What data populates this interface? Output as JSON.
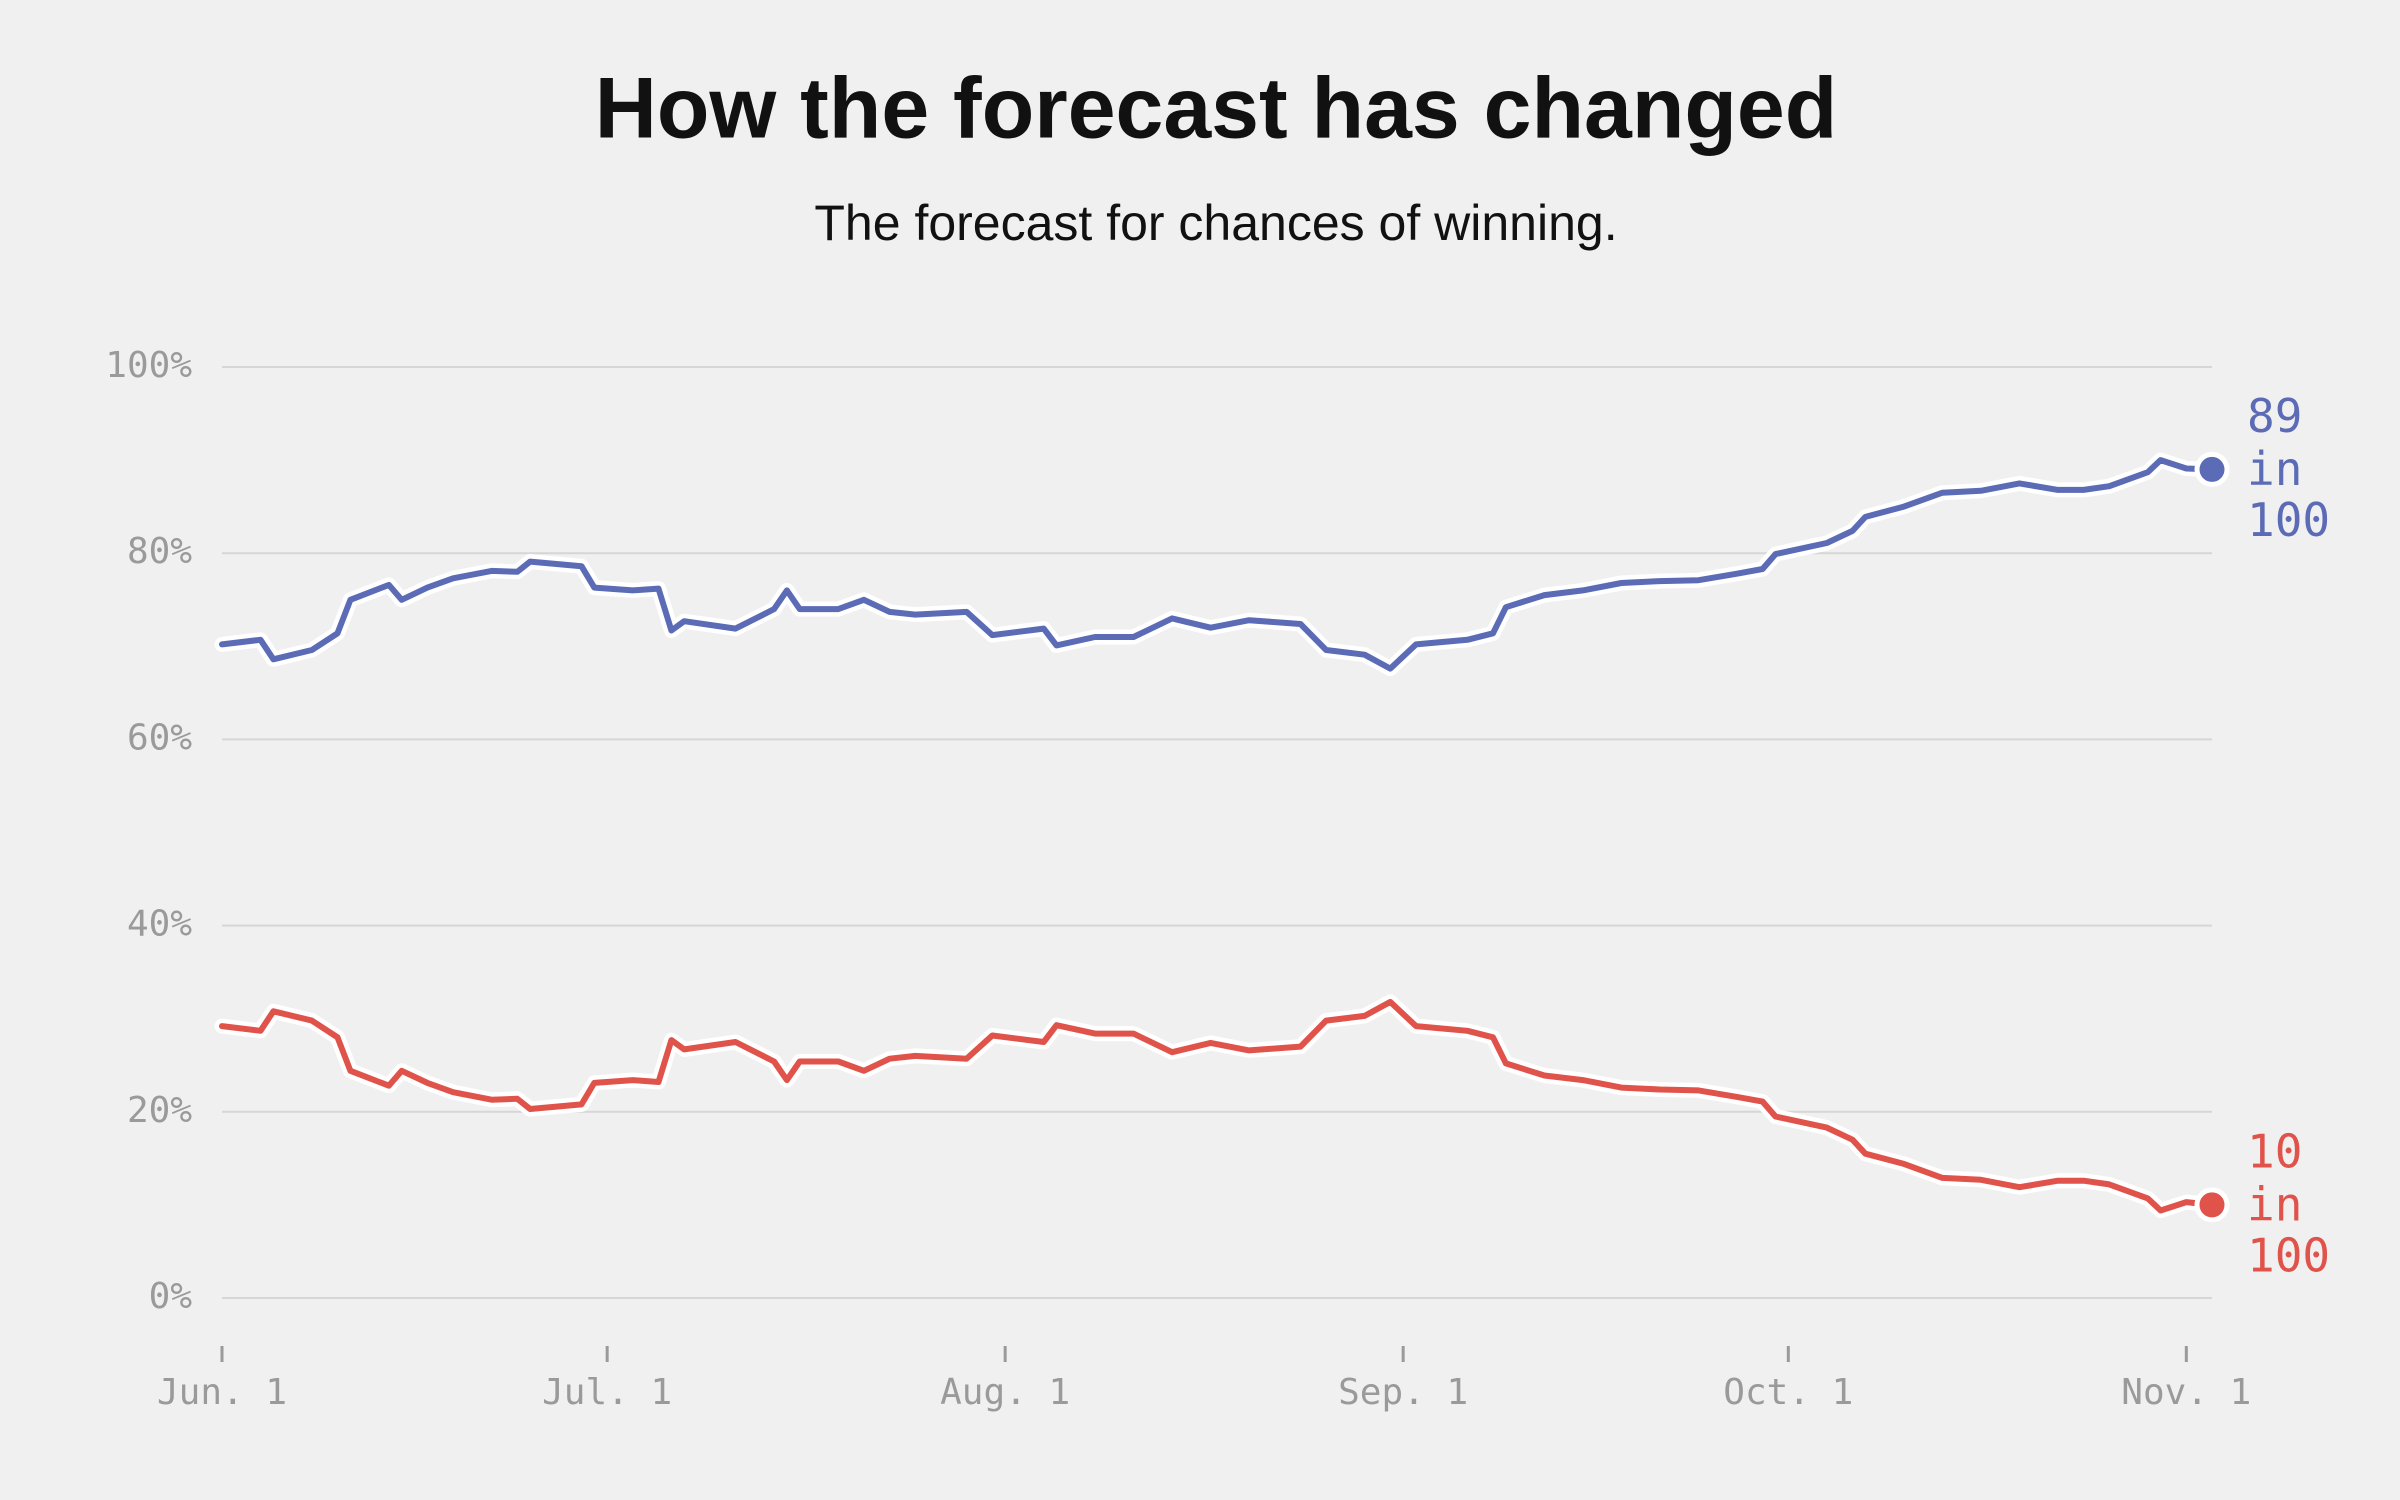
{
  "chart_data": {
    "type": "line",
    "title": "How the forecast has changed",
    "subtitle": "The forecast for chances of winning.",
    "x": [
      "06-01",
      "06-04",
      "06-05",
      "06-08",
      "06-10",
      "06-11",
      "06-14",
      "06-15",
      "06-17",
      "06-19",
      "06-22",
      "06-24",
      "06-25",
      "06-29",
      "06-30",
      "07-03",
      "07-05",
      "07-06",
      "07-07",
      "07-11",
      "07-14",
      "07-15",
      "07-16",
      "07-19",
      "07-21",
      "07-23",
      "07-25",
      "07-29",
      "07-31",
      "08-04",
      "08-05",
      "08-08",
      "08-11",
      "08-14",
      "08-17",
      "08-20",
      "08-24",
      "08-26",
      "08-29",
      "08-31",
      "09-02",
      "09-06",
      "09-08",
      "09-09",
      "09-12",
      "09-15",
      "09-18",
      "09-21",
      "09-24",
      "09-27",
      "09-29",
      "09-30",
      "10-04",
      "10-06",
      "10-07",
      "10-10",
      "10-13",
      "10-16",
      "10-19",
      "10-22",
      "10-24",
      "10-26",
      "10-29",
      "10-30",
      "11-01",
      "11-03"
    ],
    "series": [
      {
        "color": "#5b6bb5",
        "values": [
          70.2,
          70.7,
          68.6,
          69.6,
          71.4,
          75.0,
          76.6,
          75.0,
          76.3,
          77.3,
          78.1,
          78.0,
          79.1,
          78.6,
          76.3,
          76.0,
          76.2,
          71.7,
          72.7,
          71.9,
          74.0,
          76.0,
          74.0,
          74.0,
          75.0,
          73.7,
          73.4,
          73.7,
          71.2,
          71.9,
          70.1,
          71.0,
          71.0,
          73.0,
          72.0,
          72.8,
          72.4,
          69.6,
          69.1,
          67.6,
          70.2,
          70.7,
          71.4,
          74.2,
          75.5,
          76.0,
          76.8,
          77.0,
          77.1,
          77.8,
          78.3,
          79.9,
          81.1,
          82.4,
          83.9,
          85.0,
          86.5,
          86.7,
          87.5,
          86.8,
          86.8,
          87.2,
          88.7,
          90.0,
          89.1,
          89
        ]
      },
      {
        "color": "#e0534a",
        "values": [
          29.2,
          28.7,
          30.8,
          29.8,
          28.0,
          24.4,
          22.8,
          24.4,
          23.1,
          22.1,
          21.3,
          21.4,
          20.3,
          20.8,
          23.1,
          23.4,
          23.2,
          27.7,
          26.7,
          27.5,
          25.4,
          23.4,
          25.4,
          25.4,
          24.4,
          25.7,
          26.0,
          25.7,
          28.2,
          27.5,
          29.3,
          28.4,
          28.4,
          26.4,
          27.4,
          26.6,
          27.0,
          29.8,
          30.3,
          31.8,
          29.2,
          28.7,
          28.0,
          25.2,
          23.9,
          23.4,
          22.6,
          22.4,
          22.3,
          21.6,
          21.1,
          19.5,
          18.3,
          17.0,
          15.5,
          14.4,
          12.9,
          12.7,
          11.9,
          12.6,
          12.6,
          12.2,
          10.7,
          9.4,
          10.3,
          10
        ]
      }
    ],
    "end_label_suffix": [
      "in",
      "100"
    ],
    "xlim": [
      "06-01",
      "11-03"
    ],
    "xticks": [
      {
        "value": "06-01",
        "label": "Jun. 1"
      },
      {
        "value": "07-01",
        "label": "Jul. 1"
      },
      {
        "value": "08-01",
        "label": "Aug. 1"
      },
      {
        "value": "09-01",
        "label": "Sep. 1"
      },
      {
        "value": "10-01",
        "label": "Oct. 1"
      },
      {
        "value": "11-01",
        "label": "Nov. 1"
      }
    ],
    "ylim": [
      0,
      100
    ],
    "yticks": [
      {
        "value": 0,
        "label": "0%"
      },
      {
        "value": 20,
        "label": "20%"
      },
      {
        "value": 40,
        "label": "40%"
      },
      {
        "value": 60,
        "label": "60%"
      },
      {
        "value": 80,
        "label": "80%"
      },
      {
        "value": 100,
        "label": "100%"
      }
    ],
    "grid": true
  }
}
